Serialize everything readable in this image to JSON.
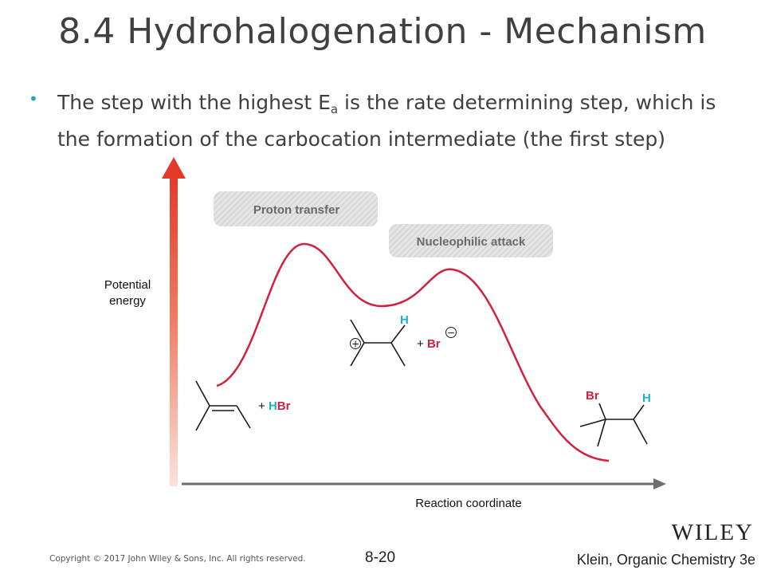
{
  "slide": {
    "title": "8.4 Hydrohalogenation - Mechanism",
    "bullet_pre": "The step with the highest E",
    "bullet_sub": "a",
    "bullet_post": " is the rate determining step, which is the formation of the carbocation intermediate (the first step)"
  },
  "diagram": {
    "y_axis_label_line1": "Potential",
    "y_axis_label_line2": "energy",
    "x_axis_label": "Reaction coordinate",
    "step1_label": "Proton transfer",
    "step2_label": "Nucleophilic attack",
    "reactant_plus": "+ ",
    "reactant_h": "H",
    "reactant_br": "Br",
    "intermediate_h": "H",
    "intermediate_plus": "+ ",
    "intermediate_br": "Br",
    "cation_charge": "+",
    "anion_charge": "−",
    "product_br": "Br",
    "product_h": "H",
    "colors": {
      "curve": "#d0213f",
      "hydrogen": "#1ab0cf",
      "bromine": "#d0213f",
      "axis_arrow": "#e43a2a",
      "x_axis": "#6d6e70",
      "label_box": "#d6d6d6"
    }
  },
  "footer": {
    "copyright": "Copyright © 2017 John Wiley & Sons, Inc. All rights reserved.",
    "page_number": "8-20",
    "book": "Klein, Organic Chemistry 3e",
    "publisher": "WILEY"
  }
}
